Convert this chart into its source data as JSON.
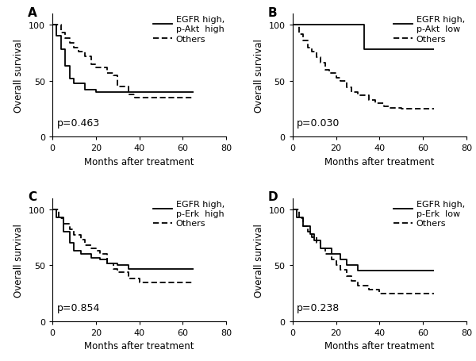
{
  "panels": [
    {
      "label": "A",
      "pvalue": "p=0.463",
      "legend_line1": "EGFR high,",
      "legend_line2": "p-Akt  high",
      "legend_others": "Others",
      "solid": {
        "x": [
          0,
          2,
          2,
          4,
          4,
          6,
          6,
          8,
          8,
          10,
          10,
          15,
          15,
          20,
          20,
          65
        ],
        "y": [
          100,
          100,
          90,
          90,
          78,
          78,
          63,
          63,
          52,
          52,
          48,
          48,
          42,
          42,
          40,
          40
        ]
      },
      "dashed": {
        "x": [
          0,
          4,
          4,
          6,
          6,
          8,
          8,
          10,
          10,
          12,
          12,
          15,
          15,
          18,
          18,
          20,
          20,
          25,
          25,
          28,
          28,
          30,
          30,
          35,
          35,
          38,
          38,
          65
        ],
        "y": [
          100,
          100,
          93,
          93,
          88,
          88,
          84,
          84,
          80,
          80,
          76,
          76,
          72,
          72,
          65,
          65,
          62,
          62,
          57,
          57,
          55,
          55,
          45,
          45,
          38,
          38,
          35,
          35
        ]
      }
    },
    {
      "label": "B",
      "pvalue": "p=0.030",
      "legend_line1": "EGFR high,",
      "legend_line2": "p-Akt  low",
      "legend_others": "Others",
      "solid": {
        "x": [
          0,
          33,
          33,
          65
        ],
        "y": [
          100,
          100,
          78,
          78
        ]
      },
      "dashed": {
        "x": [
          0,
          3,
          3,
          5,
          5,
          7,
          7,
          9,
          9,
          11,
          11,
          13,
          13,
          15,
          15,
          17,
          17,
          20,
          20,
          22,
          22,
          25,
          25,
          27,
          27,
          30,
          30,
          35,
          35,
          38,
          38,
          42,
          42,
          45,
          45,
          50,
          50,
          55,
          55,
          65
        ],
        "y": [
          100,
          100,
          92,
          92,
          86,
          86,
          80,
          80,
          76,
          76,
          71,
          71,
          66,
          66,
          60,
          60,
          57,
          57,
          53,
          53,
          50,
          50,
          44,
          44,
          40,
          40,
          37,
          37,
          33,
          33,
          30,
          30,
          27,
          27,
          26,
          26,
          25,
          25,
          25,
          25
        ]
      }
    },
    {
      "label": "C",
      "pvalue": "p=0.854",
      "legend_line1": "EGFR high,",
      "legend_line2": "p-Erk  high",
      "legend_others": "Others",
      "solid": {
        "x": [
          0,
          2,
          2,
          5,
          5,
          8,
          8,
          10,
          10,
          13,
          13,
          18,
          18,
          22,
          22,
          25,
          25,
          30,
          30,
          35,
          35,
          65
        ],
        "y": [
          100,
          100,
          93,
          93,
          80,
          80,
          70,
          70,
          63,
          63,
          60,
          60,
          57,
          57,
          55,
          55,
          52,
          52,
          50,
          50,
          47,
          47
        ]
      },
      "dashed": {
        "x": [
          0,
          3,
          3,
          5,
          5,
          8,
          8,
          10,
          10,
          13,
          13,
          15,
          15,
          18,
          18,
          20,
          20,
          22,
          22,
          25,
          25,
          28,
          28,
          30,
          30,
          35,
          35,
          40,
          40,
          65
        ],
        "y": [
          100,
          100,
          92,
          92,
          87,
          87,
          82,
          82,
          77,
          77,
          73,
          73,
          68,
          68,
          65,
          65,
          63,
          63,
          60,
          60,
          52,
          52,
          47,
          47,
          44,
          44,
          38,
          38,
          35,
          35
        ]
      }
    },
    {
      "label": "D",
      "pvalue": "p=0.238",
      "legend_line1": "EGFR high,",
      "legend_line2": "p-Erk  low",
      "legend_others": "Others",
      "solid": {
        "x": [
          0,
          2,
          2,
          5,
          5,
          8,
          8,
          10,
          10,
          13,
          13,
          18,
          18,
          22,
          22,
          25,
          25,
          30,
          30,
          65
        ],
        "y": [
          100,
          100,
          93,
          93,
          85,
          85,
          78,
          78,
          72,
          72,
          65,
          65,
          60,
          60,
          55,
          55,
          50,
          50,
          45,
          45
        ]
      },
      "dashed": {
        "x": [
          0,
          3,
          3,
          5,
          5,
          7,
          7,
          9,
          9,
          11,
          11,
          13,
          13,
          15,
          15,
          18,
          18,
          20,
          20,
          22,
          22,
          25,
          25,
          27,
          27,
          30,
          30,
          35,
          35,
          40,
          40,
          45,
          45,
          55,
          55,
          65
        ],
        "y": [
          100,
          100,
          92,
          92,
          85,
          85,
          80,
          80,
          75,
          75,
          70,
          70,
          65,
          65,
          60,
          60,
          55,
          55,
          50,
          50,
          46,
          46,
          40,
          40,
          36,
          36,
          32,
          32,
          28,
          28,
          25,
          25,
          25,
          25,
          25,
          25
        ]
      }
    }
  ],
  "xlabel": "Months after treatment",
  "ylabel": "Overall survival",
  "xlim": [
    0,
    80
  ],
  "ylim": [
    0,
    110
  ],
  "yticks": [
    0,
    50,
    100
  ],
  "xticks": [
    0,
    20,
    40,
    60,
    80
  ],
  "line_color": "#000000",
  "linewidth": 1.3,
  "fontsize_label": 8.5,
  "fontsize_tick": 8,
  "fontsize_pvalue": 9,
  "fontsize_legend": 8,
  "fontsize_panel_label": 11
}
